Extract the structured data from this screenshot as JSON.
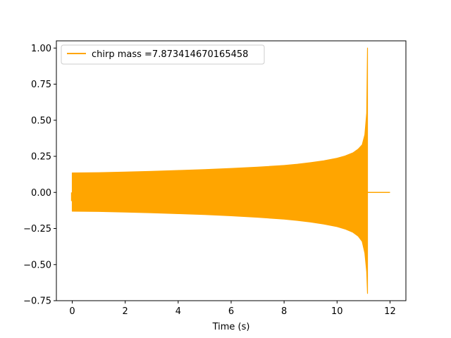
{
  "chart_data": {
    "type": "line",
    "title": "",
    "xlabel": "Time (s)",
    "ylabel": "",
    "xlim": [
      -0.6,
      12.6
    ],
    "ylim": [
      -0.75,
      1.05
    ],
    "x_ticks": [
      0,
      2,
      4,
      6,
      8,
      10,
      12
    ],
    "x_tick_labels": [
      "0",
      "2",
      "4",
      "6",
      "8",
      "10",
      "12"
    ],
    "y_ticks": [
      -0.75,
      -0.5,
      -0.25,
      0.0,
      0.25,
      0.5,
      0.75,
      1.0
    ],
    "y_tick_labels": [
      "−0.75",
      "−0.50",
      "−0.25",
      "0.00",
      "0.25",
      "0.50",
      "0.75",
      "1.00"
    ],
    "grid": false,
    "legend_position": "upper-left",
    "series": [
      {
        "name": "chirp mass =7.873414670165458",
        "color": "#ffa500",
        "upper_envelope": {
          "x": [
            0,
            1,
            2,
            3,
            4,
            5,
            6,
            7,
            8,
            8.5,
            9,
            9.5,
            10,
            10.3,
            10.6,
            10.8,
            10.95,
            11.05,
            11.12,
            11.15
          ],
          "y": [
            0.135,
            0.137,
            0.141,
            0.146,
            0.152,
            0.158,
            0.166,
            0.175,
            0.187,
            0.195,
            0.206,
            0.219,
            0.237,
            0.252,
            0.274,
            0.3,
            0.33,
            0.4,
            0.55,
            1.0
          ]
        },
        "lower_envelope": {
          "x": [
            0,
            1,
            2,
            3,
            4,
            5,
            6,
            7,
            8,
            8.5,
            9,
            9.5,
            10,
            10.3,
            10.6,
            10.8,
            10.95,
            11.05,
            11.12,
            11.15
          ],
          "y": [
            -0.13,
            -0.132,
            -0.136,
            -0.141,
            -0.147,
            -0.153,
            -0.162,
            -0.172,
            -0.185,
            -0.194,
            -0.205,
            -0.219,
            -0.237,
            -0.253,
            -0.276,
            -0.303,
            -0.34,
            -0.42,
            -0.55,
            -0.7
          ]
        },
        "post_merger": {
          "x": [
            11.15,
            12.0
          ],
          "y": [
            0.0,
            0.0
          ]
        }
      }
    ]
  }
}
